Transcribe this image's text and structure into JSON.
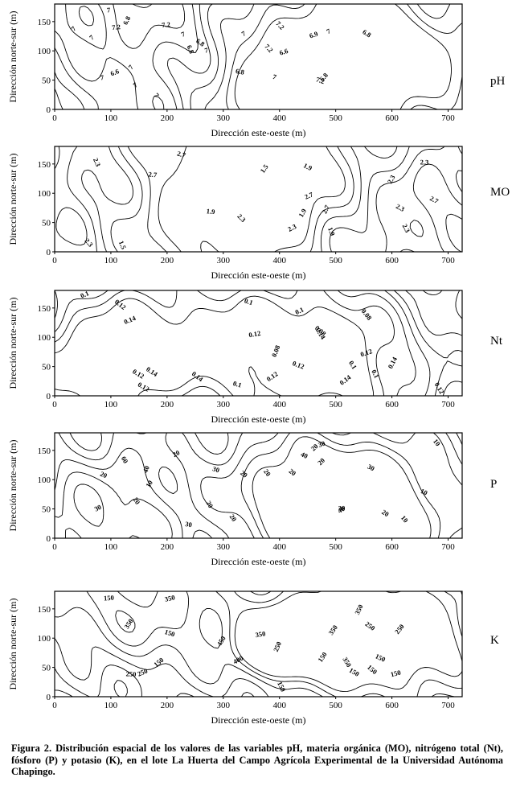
{
  "figure": {
    "x_axis_label": "Dirección este-oeste (m)",
    "y_axis_label": "Dirección norte-sur (m)",
    "x_ticks": [
      "0",
      "100",
      "200",
      "300",
      "400",
      "500",
      "600",
      "700"
    ],
    "y_ticks": [
      "0",
      "50",
      "100",
      "150"
    ],
    "panels": [
      {
        "variable": "pH",
        "contour_labels": [
          "7.2",
          "7",
          "6.8",
          "6.6",
          "7",
          "6.8",
          "7",
          "7.2",
          "7",
          "7.2",
          "6.8",
          "7",
          "7",
          "7",
          "6.6",
          "6.8",
          "7",
          "6.8",
          "7.2",
          "7",
          "7",
          "7",
          "6.9",
          "7",
          "6.8",
          "7.2"
        ]
      },
      {
        "variable": "MO",
        "contour_labels": [
          "2.7",
          "2.3",
          "2.7",
          "1.9",
          "2.3",
          "1.5",
          "1.9",
          "2.7",
          "2.3",
          "1.5",
          "2.7",
          "2.3",
          "1.9",
          "2.3",
          "2.7",
          "2.3",
          "2.3",
          "1.9",
          "2.3"
        ]
      },
      {
        "variable": "Nt",
        "contour_labels": [
          "0.14",
          "0.12",
          "0.1",
          "0.12",
          "0.08",
          "0.12",
          "0.08",
          "0.1",
          "0.14",
          "0.1",
          "0.1",
          "0.12",
          "0.14",
          "0.14",
          "0.14",
          "0.12",
          "0.12",
          "0.1",
          "0.08",
          "0.12",
          "0.14",
          "0.12",
          "0.1"
        ]
      },
      {
        "variable": "P",
        "contour_labels": [
          "20",
          "20",
          "20",
          "10",
          "10",
          "20",
          "10",
          "20",
          "20",
          "20",
          "30",
          "20",
          "30",
          "20",
          "30",
          "10",
          "40",
          "30",
          "40",
          "60",
          "40",
          "20",
          "20",
          "30",
          "30"
        ]
      },
      {
        "variable": "K",
        "contour_labels": [
          "450",
          "350",
          "150",
          "350",
          "250",
          "150",
          "150",
          "350",
          "400",
          "250",
          "350",
          "150",
          "150",
          "150",
          "250",
          "150",
          "350",
          "250",
          "250",
          "350",
          "150",
          "150"
        ]
      }
    ]
  },
  "caption": "Figura 2. Distribución espacial de los valores de las variables pH, materia orgánica (MO), nitrógeno total (Nt), fósforo (P) y potasio (K), en el lote La Huerta del Campo Agrícola Experimental de la Universidad Autónoma Chapingo."
}
